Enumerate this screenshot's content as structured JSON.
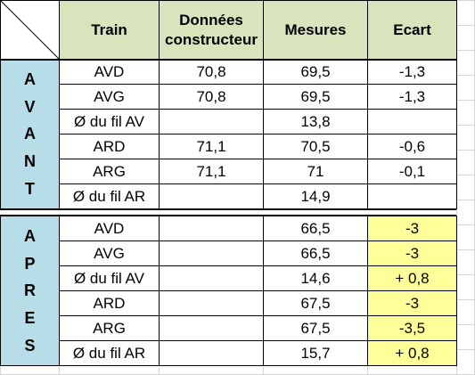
{
  "header": {
    "train": "Train",
    "donnees_line1": "Données",
    "donnees_line2": "constructeur",
    "mesures": "Mesures",
    "ecart": "Ecart"
  },
  "sections": {
    "avant_letters": [
      "A",
      "V",
      "A",
      "N",
      "T"
    ],
    "apres_letters": [
      "A",
      "P",
      "R",
      "E",
      "S"
    ]
  },
  "avant_rows": [
    {
      "train": "AVD",
      "donnees": "70,8",
      "mesures": "69,5",
      "ecart": "-1,3"
    },
    {
      "train": "AVG",
      "donnees": "70,8",
      "mesures": "69,5",
      "ecart": "-1,3"
    },
    {
      "train": "Ø du fil AV",
      "donnees": "",
      "mesures": "13,8",
      "ecart": ""
    },
    {
      "train": "ARD",
      "donnees": "71,1",
      "mesures": "70,5",
      "ecart": "-0,6"
    },
    {
      "train": "ARG",
      "donnees": "71,1",
      "mesures": "71",
      "ecart": "-0,1"
    },
    {
      "train": "Ø du fil AR",
      "donnees": "",
      "mesures": "14,9",
      "ecart": ""
    }
  ],
  "apres_rows": [
    {
      "train": "AVD",
      "donnees": "",
      "mesures": "66,5",
      "ecart": "-3"
    },
    {
      "train": "AVG",
      "donnees": "",
      "mesures": "66,5",
      "ecart": "-3"
    },
    {
      "train": "Ø du fil AV",
      "donnees": "",
      "mesures": "14,6",
      "ecart": "+ 0,8"
    },
    {
      "train": "ARD",
      "donnees": "",
      "mesures": "67,5",
      "ecart": "-3"
    },
    {
      "train": "ARG",
      "donnees": "",
      "mesures": "67,5",
      "ecart": "-3,5"
    },
    {
      "train": "Ø du fil AR",
      "donnees": "",
      "mesures": "15,7",
      "ecart": "+ 0,8"
    }
  ],
  "colors": {
    "header_fill": "#d8e4bc",
    "side_fill": "#b7dee8",
    "highlight_fill": "#ffff99",
    "gridline": "#d4d4d4"
  }
}
